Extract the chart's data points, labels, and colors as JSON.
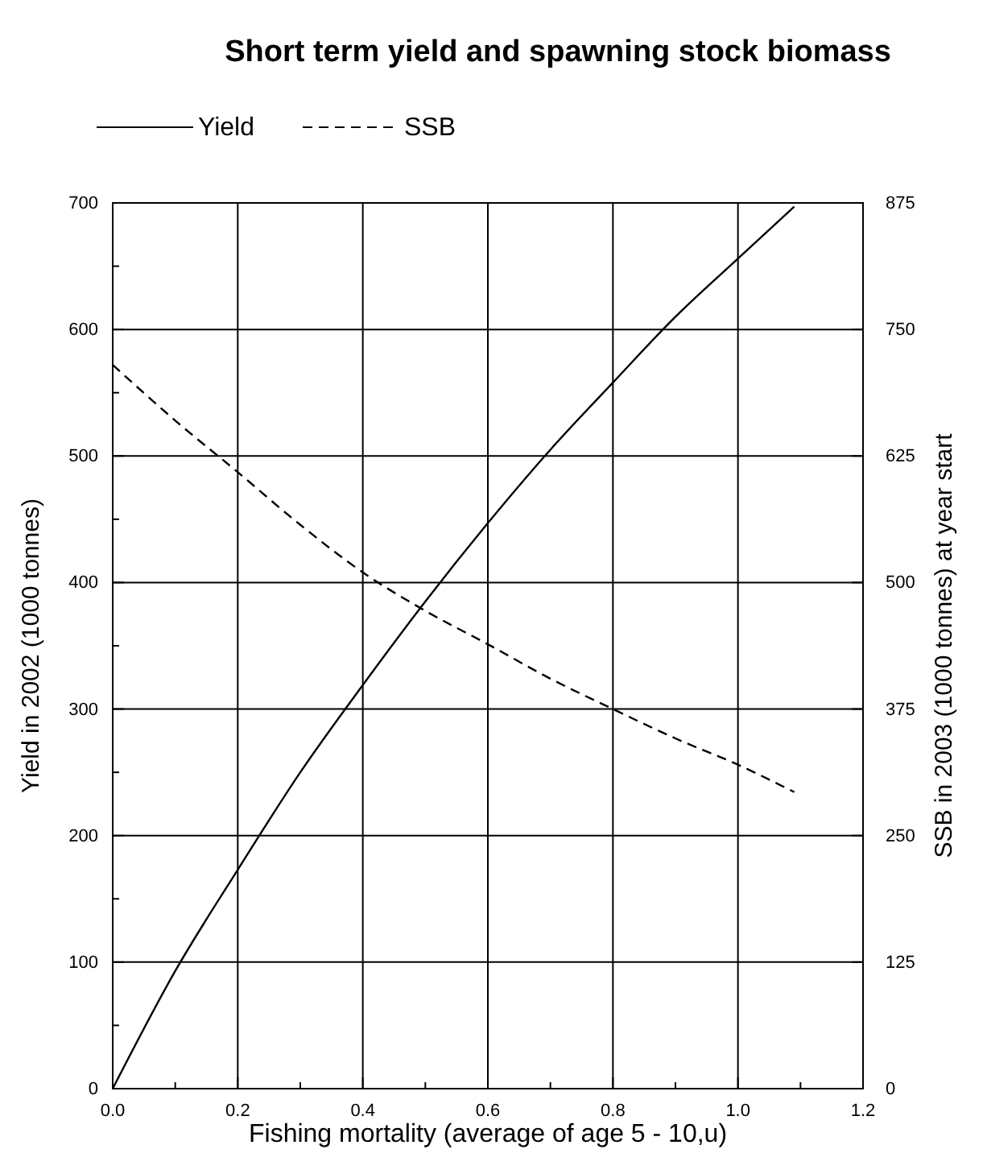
{
  "chart_data": {
    "type": "line",
    "title": "Short term yield and spawning stock biomass",
    "xlabel": "Fishing mortality (average of age 5 - 10,u)",
    "ylabel": "Yield in 2002 (1000 tonnes)",
    "y2label": "SSB in 2003 (1000 tonnes) at year start",
    "x": [
      0,
      0.1,
      0.2,
      0.3,
      0.4,
      0.5,
      0.6,
      0.7,
      0.8,
      0.9,
      1.0,
      1.09
    ],
    "series": [
      {
        "name": "Yield",
        "color": "#000000",
        "line_style": "solid",
        "values": [
          0,
          93,
          173,
          250,
          319,
          385,
          447,
          505,
          558,
          610,
          656,
          697
        ]
      },
      {
        "name": "SSB",
        "color": "#000000",
        "line_style": "dashed",
        "axis": "y2",
        "values": [
          715,
          660,
          609,
          557,
          510,
          472,
          439,
          405,
          375,
          346,
          320,
          293
        ]
      }
    ],
    "xlim": [
      0,
      1.2
    ],
    "xticks": [
      {
        "value": 0,
        "label": "0.0"
      },
      {
        "value": 0.1,
        "label": null
      },
      {
        "value": 0.2,
        "label": "0.2"
      },
      {
        "value": 0.3,
        "label": null
      },
      {
        "value": 0.4,
        "label": "0.4"
      },
      {
        "value": 0.5,
        "label": null
      },
      {
        "value": 0.6,
        "label": "0.6"
      },
      {
        "value": 0.7,
        "label": null
      },
      {
        "value": 0.8,
        "label": "0.8"
      },
      {
        "value": 0.9,
        "label": null
      },
      {
        "value": 1.0,
        "label": "1.0"
      },
      {
        "value": 1.1,
        "label": null
      },
      {
        "value": 1.2,
        "label": "1.2"
      }
    ],
    "ylim": [
      0,
      700
    ],
    "yticks": [
      0,
      {
        "value": 50,
        "label": null
      },
      100,
      {
        "value": 150,
        "label": null
      },
      200,
      {
        "value": 250,
        "label": null
      },
      300,
      {
        "value": 350,
        "label": null
      },
      400,
      {
        "value": 450,
        "label": null
      },
      500,
      {
        "value": 550,
        "label": null
      },
      600,
      {
        "value": 650,
        "label": null
      },
      700
    ],
    "y2lim": [
      0,
      875
    ],
    "y2ticks": [
      0,
      125,
      250,
      375,
      500,
      625,
      750,
      875
    ],
    "grid": true,
    "legend": "top",
    "marker": "none"
  }
}
